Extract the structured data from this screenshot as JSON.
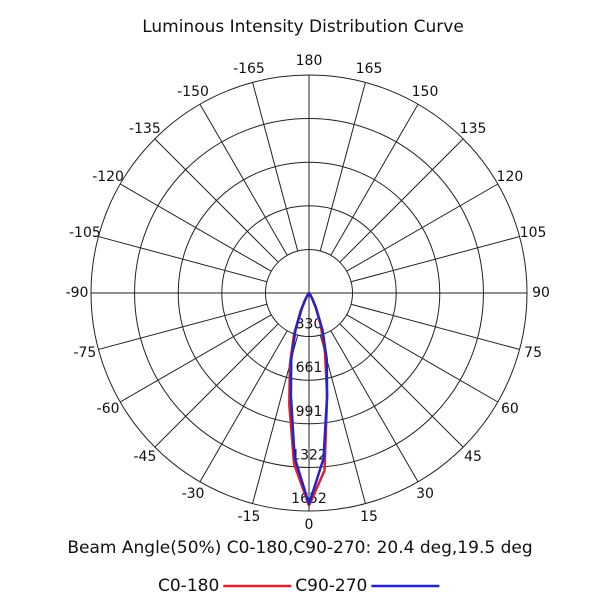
{
  "chart_data": {
    "type": "polar",
    "title": "Luminous Intensity Distribution Curve",
    "note": "Beam Angle(50%) C0-180,C90-270: 20.4 deg,19.5 deg",
    "theta": [
      -90,
      -60,
      -45,
      -40,
      -35,
      -30,
      -25,
      -20,
      -15,
      -10,
      -5,
      0,
      5,
      10,
      15,
      20,
      25,
      30,
      35,
      40,
      45,
      60,
      90
    ],
    "series": [
      {
        "name": "C0-180",
        "color": "#e0202a",
        "values": [
          0,
          0,
          2,
          5,
          20,
          60,
          150,
          330,
          560,
          860,
          1300,
          1610,
          1350,
          790,
          470,
          260,
          120,
          45,
          15,
          4,
          1,
          0,
          0
        ]
      },
      {
        "name": "C90-270",
        "color": "#2424c8",
        "values": [
          0,
          0,
          1,
          4,
          15,
          50,
          130,
          300,
          520,
          790,
          1250,
          1600,
          1260,
          790,
          520,
          300,
          130,
          50,
          15,
          4,
          1,
          0,
          0
        ]
      }
    ],
    "rlim": [
      0,
      1652
    ],
    "rticks": [
      330,
      661,
      991,
      1322,
      1652
    ],
    "thetaticks": [
      -165,
      -150,
      -135,
      -120,
      -105,
      -90,
      -75,
      -60,
      -45,
      -30,
      -15,
      0,
      15,
      30,
      45,
      60,
      75,
      90,
      105,
      120,
      135,
      150,
      165,
      180
    ]
  }
}
